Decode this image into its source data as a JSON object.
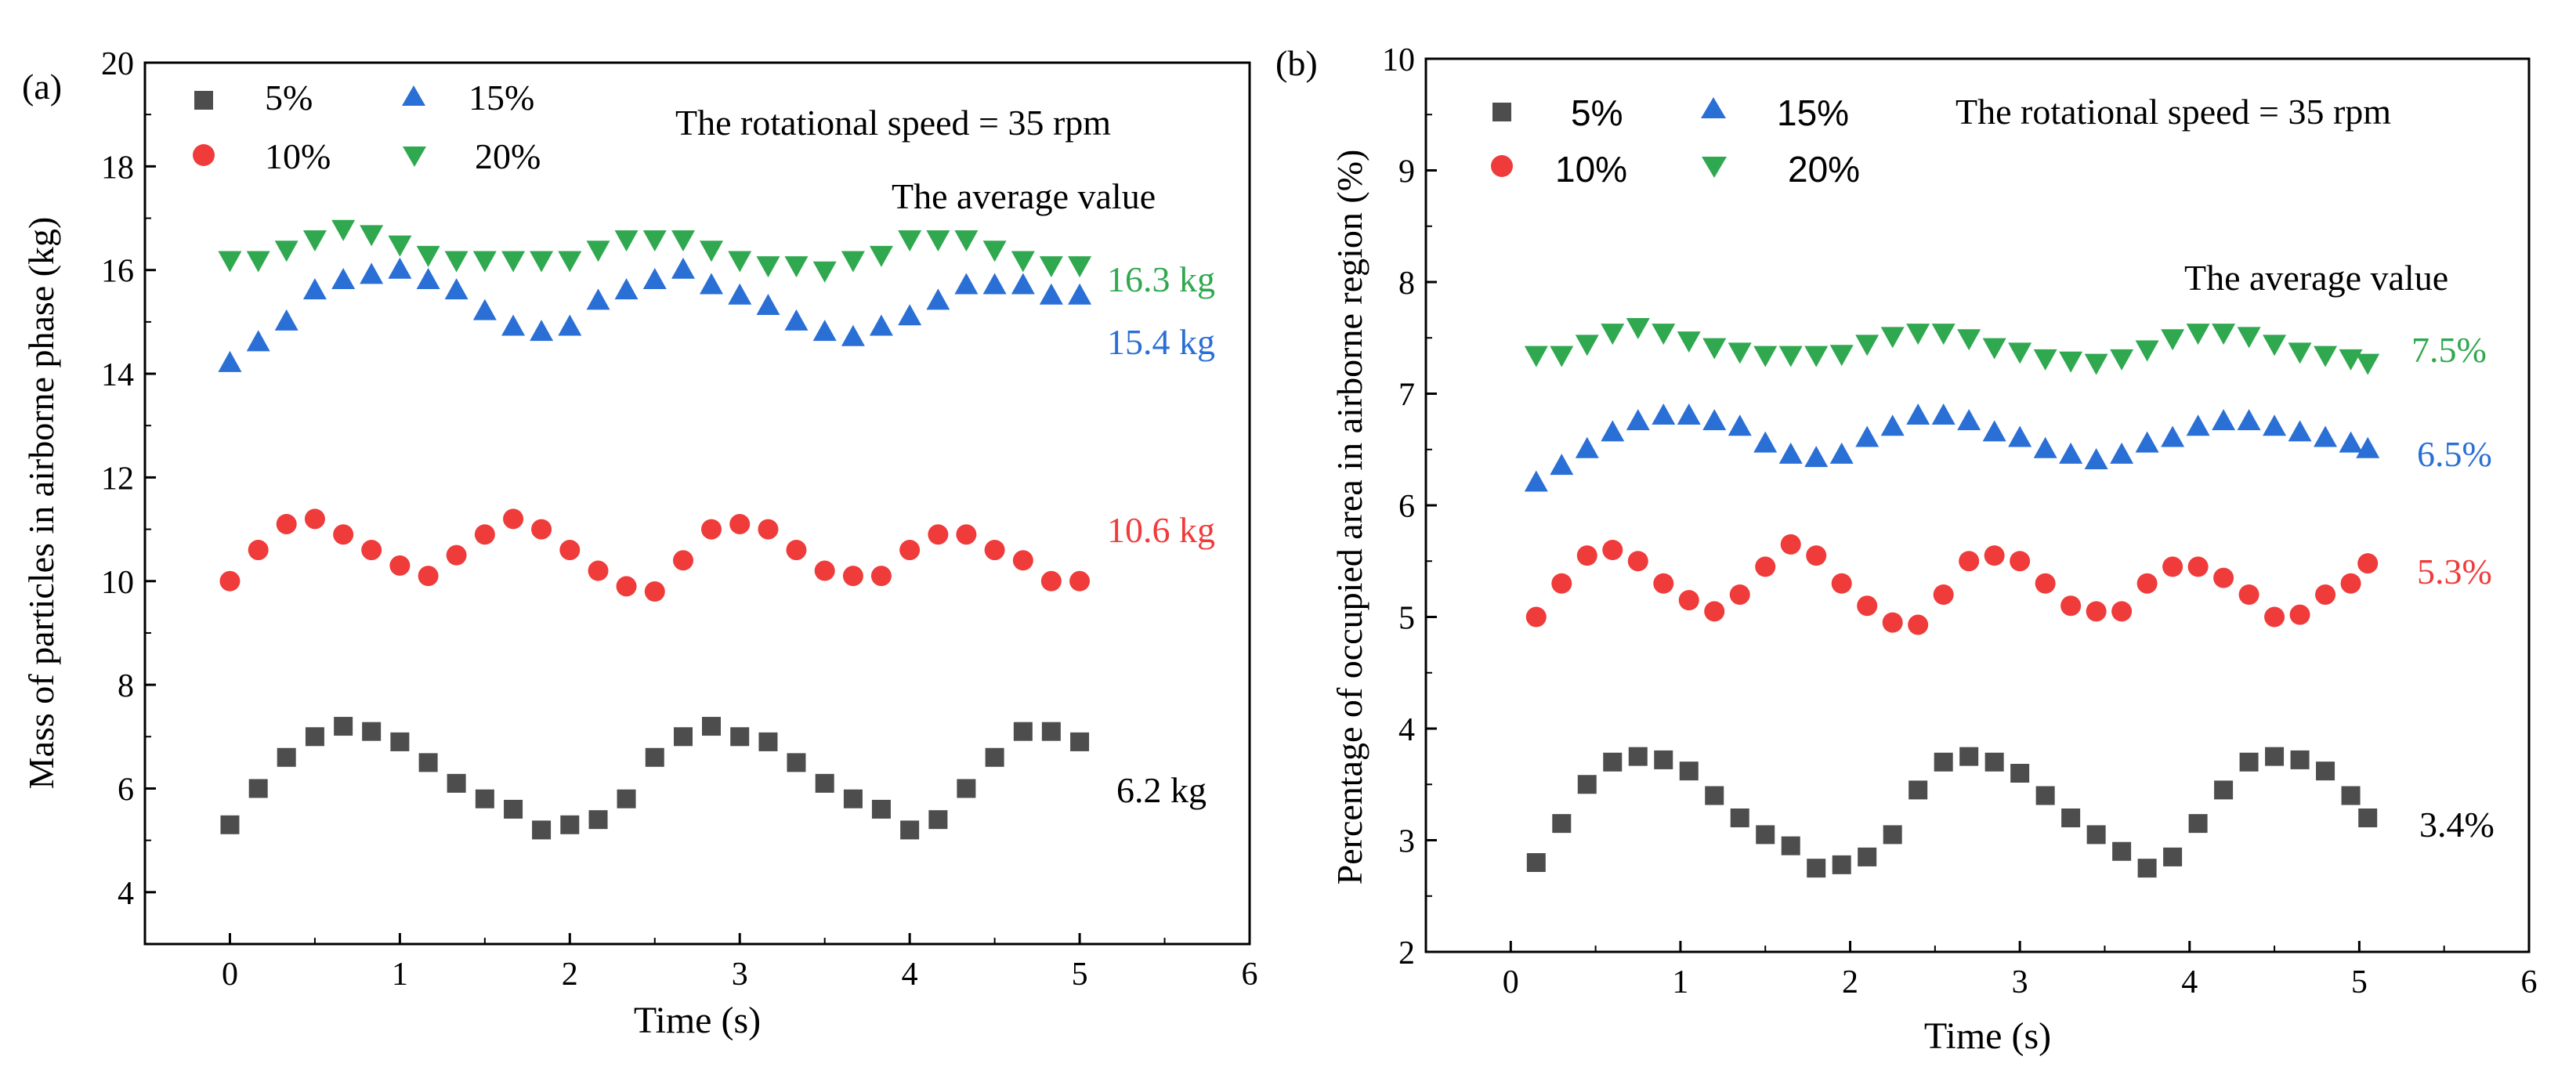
{
  "chart_data": [
    {
      "type": "scatter",
      "panel_label": "(a)",
      "xlabel": "Time (s)",
      "ylabel": "Mass of particles in airborne phase (kg)",
      "xlim": [
        -0.5,
        6
      ],
      "ylim": [
        3,
        20
      ],
      "xticks": [
        "0",
        "1",
        "2",
        "3",
        "4",
        "5",
        "6"
      ],
      "yticks": [
        "4",
        "6",
        "8",
        "10",
        "12",
        "14",
        "16",
        "18",
        "20"
      ],
      "annotation_speed": "The rotational speed = 35 rpm",
      "annotation_average": "The average value",
      "x": [
        0,
        0.167,
        0.333,
        0.5,
        0.667,
        0.833,
        1.0,
        1.167,
        1.333,
        1.5,
        1.667,
        1.833,
        2.0,
        2.167,
        2.333,
        2.5,
        2.667,
        2.833,
        3.0,
        3.167,
        3.333,
        3.5,
        3.667,
        3.833,
        4.0,
        4.167,
        4.333,
        4.5,
        4.667,
        4.833,
        5.0
      ],
      "series": [
        {
          "name": "5%",
          "marker": "square",
          "color": "#4d4d4d",
          "average_label": "6.2 kg",
          "values": [
            5.3,
            6.0,
            6.6,
            7.0,
            7.2,
            7.1,
            6.9,
            6.5,
            6.1,
            5.8,
            5.6,
            5.2,
            5.3,
            5.4,
            5.8,
            6.6,
            7.0,
            7.2,
            7.0,
            6.9,
            6.5,
            6.1,
            5.8,
            5.6,
            5.2,
            5.4,
            6.0,
            6.6,
            7.1,
            7.1,
            6.9
          ]
        },
        {
          "name": "10%",
          "marker": "circle",
          "color": "#f03b3b",
          "average_label": "10.6 kg",
          "values": [
            10.0,
            10.6,
            11.1,
            11.2,
            10.9,
            10.6,
            10.3,
            10.1,
            10.5,
            10.9,
            11.2,
            11.0,
            10.6,
            10.2,
            9.9,
            9.8,
            10.4,
            11.0,
            11.1,
            11.0,
            10.6,
            10.2,
            10.1,
            10.1,
            10.6,
            10.9,
            10.9,
            10.6,
            10.4,
            10.0,
            10.0
          ]
        },
        {
          "name": "15%",
          "marker": "triangle-up",
          "color": "#2a6fd6",
          "average_label": "15.4 kg",
          "values": [
            14.2,
            14.6,
            15.0,
            15.6,
            15.8,
            15.9,
            16.0,
            15.8,
            15.6,
            15.2,
            14.9,
            14.8,
            14.9,
            15.4,
            15.6,
            15.8,
            16.0,
            15.7,
            15.5,
            15.3,
            15.0,
            14.8,
            14.7,
            14.9,
            15.1,
            15.4,
            15.7,
            15.7,
            15.7,
            15.5,
            15.5
          ]
        },
        {
          "name": "20%",
          "marker": "triangle-down",
          "color": "#2fa84f",
          "average_label": "16.3 kg",
          "values": [
            16.2,
            16.2,
            16.4,
            16.6,
            16.8,
            16.7,
            16.5,
            16.3,
            16.2,
            16.2,
            16.2,
            16.2,
            16.2,
            16.4,
            16.6,
            16.6,
            16.6,
            16.4,
            16.2,
            16.1,
            16.1,
            16.0,
            16.2,
            16.3,
            16.6,
            16.6,
            16.6,
            16.4,
            16.2,
            16.1,
            16.1
          ]
        }
      ]
    },
    {
      "type": "scatter",
      "panel_label": "(b)",
      "xlabel": "Time (s)",
      "ylabel": "Percentage of occupied area in airborne region (%)",
      "xlim": [
        -0.5,
        6
      ],
      "ylim": [
        2,
        10
      ],
      "xticks": [
        "0",
        "1",
        "2",
        "3",
        "4",
        "5",
        "6"
      ],
      "yticks": [
        "2",
        "3",
        "4",
        "5",
        "6",
        "7",
        "8",
        "9",
        "10"
      ],
      "annotation_speed": "The rotational speed = 35 rpm",
      "annotation_average": "The average value",
      "x": [
        0.15,
        0.3,
        0.45,
        0.6,
        0.75,
        0.9,
        1.05,
        1.2,
        1.35,
        1.5,
        1.65,
        1.8,
        1.95,
        2.1,
        2.25,
        2.4,
        2.55,
        2.7,
        2.85,
        3.0,
        3.15,
        3.3,
        3.45,
        3.6,
        3.75,
        3.9,
        4.05,
        4.2,
        4.35,
        4.5,
        4.65,
        4.8,
        4.95,
        5.05
      ],
      "series": [
        {
          "name": "5%",
          "marker": "square",
          "color": "#4d4d4d",
          "average_label": "3.4%",
          "values": [
            2.8,
            3.15,
            3.5,
            3.7,
            3.75,
            3.72,
            3.62,
            3.4,
            3.2,
            3.05,
            2.95,
            2.75,
            2.78,
            2.85,
            3.05,
            3.45,
            3.7,
            3.75,
            3.7,
            3.6,
            3.4,
            3.2,
            3.05,
            2.9,
            2.75,
            2.85,
            3.15,
            3.45,
            3.7,
            3.75,
            3.72,
            3.62,
            3.4,
            3.2
          ]
        },
        {
          "name": "10%",
          "marker": "circle",
          "color": "#f03b3b",
          "average_label": "5.3%",
          "values": [
            5.0,
            5.3,
            5.55,
            5.6,
            5.5,
            5.3,
            5.15,
            5.05,
            5.2,
            5.45,
            5.65,
            5.55,
            5.3,
            5.1,
            4.95,
            4.93,
            5.2,
            5.5,
            5.55,
            5.5,
            5.3,
            5.1,
            5.05,
            5.05,
            5.3,
            5.45,
            5.45,
            5.35,
            5.2,
            5.0,
            5.02,
            5.2,
            5.3,
            5.48
          ]
        },
        {
          "name": "15%",
          "marker": "triangle-up",
          "color": "#2a6fd6",
          "average_label": "6.5%",
          "values": [
            6.2,
            6.35,
            6.5,
            6.65,
            6.75,
            6.8,
            6.8,
            6.75,
            6.7,
            6.55,
            6.45,
            6.42,
            6.45,
            6.6,
            6.7,
            6.8,
            6.8,
            6.75,
            6.65,
            6.6,
            6.5,
            6.45,
            6.4,
            6.45,
            6.55,
            6.6,
            6.7,
            6.75,
            6.75,
            6.7,
            6.65,
            6.6,
            6.55,
            6.5
          ]
        },
        {
          "name": "20%",
          "marker": "triangle-down",
          "color": "#2fa84f",
          "average_label": "7.5%",
          "values": [
            7.35,
            7.35,
            7.45,
            7.55,
            7.6,
            7.55,
            7.48,
            7.42,
            7.38,
            7.35,
            7.35,
            7.35,
            7.36,
            7.45,
            7.52,
            7.55,
            7.55,
            7.5,
            7.42,
            7.38,
            7.32,
            7.3,
            7.28,
            7.32,
            7.4,
            7.5,
            7.55,
            7.55,
            7.52,
            7.45,
            7.38,
            7.35,
            7.32,
            7.28
          ]
        }
      ]
    }
  ]
}
